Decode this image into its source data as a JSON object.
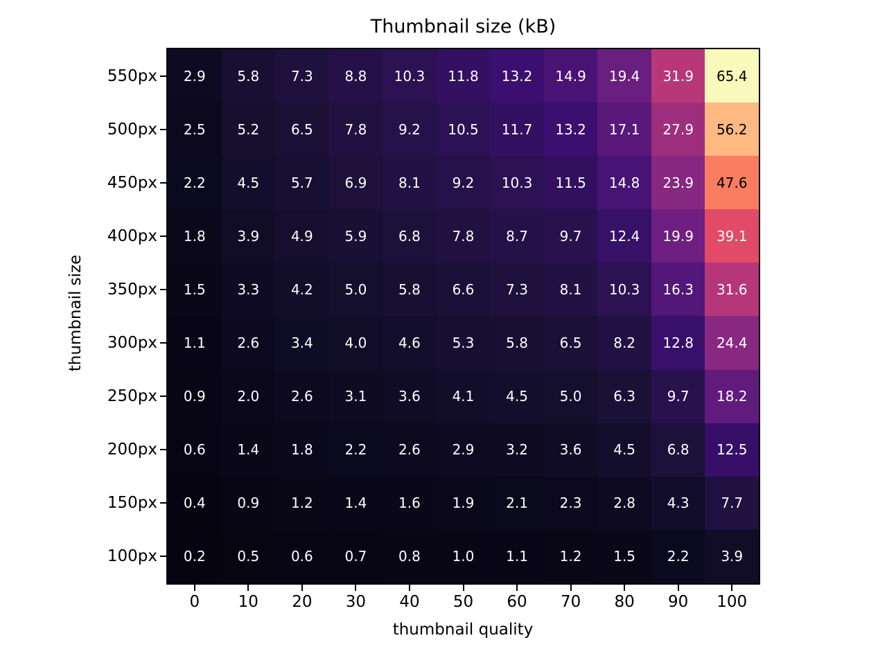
{
  "figure": {
    "background": "#ffffff",
    "axis_color": "#000000"
  },
  "chart_data": {
    "type": "heatmap",
    "title": "Thumbnail size (kB)",
    "xlabel": "thumbnail quality",
    "ylabel": "thumbnail size",
    "x_ticklabels": [
      "0",
      "10",
      "20",
      "30",
      "40",
      "50",
      "60",
      "70",
      "80",
      "90",
      "100"
    ],
    "y_ticklabels": [
      "550px",
      "500px",
      "450px",
      "400px",
      "350px",
      "300px",
      "250px",
      "200px",
      "150px",
      "100px"
    ],
    "values": [
      [
        2.9,
        5.8,
        7.3,
        8.8,
        10.3,
        11.8,
        13.2,
        14.9,
        19.4,
        31.9,
        65.4
      ],
      [
        2.5,
        5.2,
        6.5,
        7.8,
        9.2,
        10.5,
        11.7,
        13.2,
        17.1,
        27.9,
        56.2
      ],
      [
        2.2,
        4.5,
        5.7,
        6.9,
        8.1,
        9.2,
        10.3,
        11.5,
        14.8,
        23.9,
        47.6
      ],
      [
        1.8,
        3.9,
        4.9,
        5.9,
        6.8,
        7.8,
        8.7,
        9.7,
        12.4,
        19.9,
        39.1
      ],
      [
        1.5,
        3.3,
        4.2,
        5.0,
        5.8,
        6.6,
        7.3,
        8.1,
        10.3,
        16.3,
        31.6
      ],
      [
        1.1,
        2.6,
        3.4,
        4.0,
        4.6,
        5.3,
        5.8,
        6.5,
        8.2,
        12.8,
        24.4
      ],
      [
        0.9,
        2.0,
        2.6,
        3.1,
        3.6,
        4.1,
        4.5,
        5.0,
        6.3,
        9.7,
        18.2
      ],
      [
        0.6,
        1.4,
        1.8,
        2.2,
        2.6,
        2.9,
        3.2,
        3.6,
        4.5,
        6.8,
        12.5
      ],
      [
        0.4,
        0.9,
        1.2,
        1.4,
        1.6,
        1.9,
        2.1,
        2.3,
        2.8,
        4.3,
        7.7
      ],
      [
        0.2,
        0.5,
        0.6,
        0.7,
        0.8,
        1.0,
        1.1,
        1.2,
        1.5,
        2.2,
        3.9
      ]
    ],
    "decimals": 1,
    "vmin": 0.2,
    "vmax": 65.4,
    "colormap": "magma",
    "colormap_stops": [
      [
        0.0,
        "#060410"
      ],
      [
        0.045,
        "#0e0b23"
      ],
      [
        0.09,
        "#191134"
      ],
      [
        0.15,
        "#2a1150"
      ],
      [
        0.2,
        "#3b0f70"
      ],
      [
        0.3,
        "#6d1f81"
      ],
      [
        0.4,
        "#942c80"
      ],
      [
        0.5,
        "#bd3977"
      ],
      [
        0.6,
        "#e24c67"
      ],
      [
        0.7,
        "#f7705c"
      ],
      [
        0.8,
        "#fe9f6d"
      ],
      [
        0.9,
        "#fec990"
      ],
      [
        1.0,
        "#fbf8bb"
      ]
    ],
    "cell_text_color_dark_bg": "#ffffff",
    "cell_text_color_light_bg": "#000000",
    "grid": false,
    "legend": false,
    "tick_direction": "out"
  }
}
